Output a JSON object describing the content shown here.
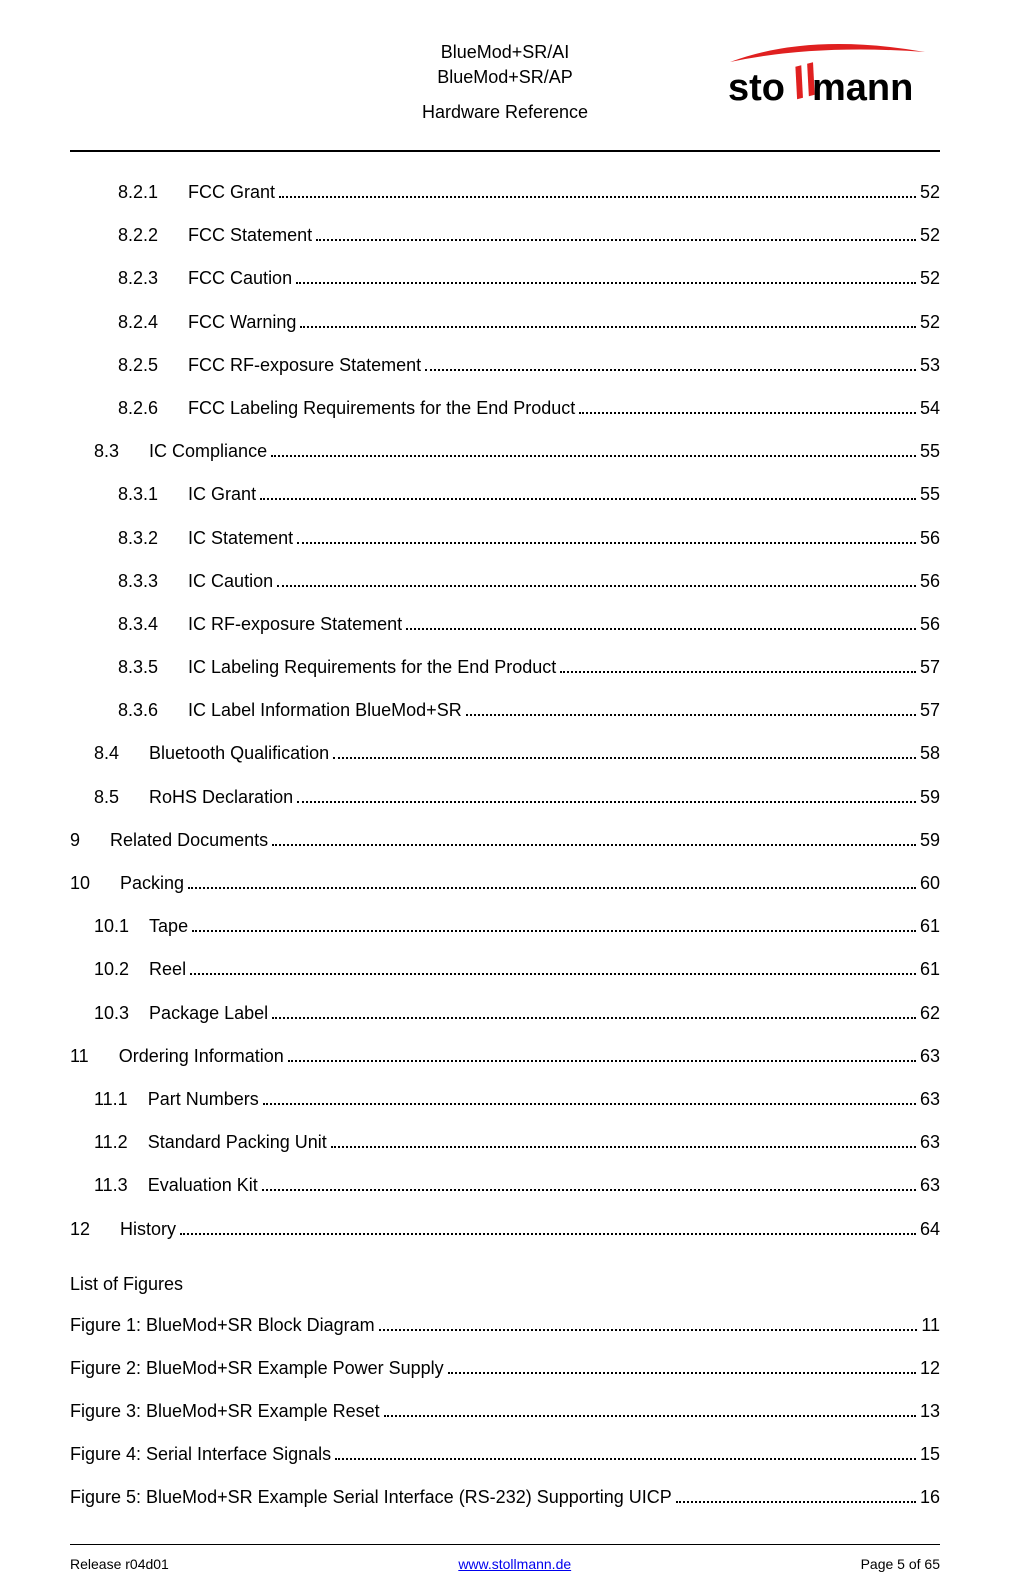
{
  "header": {
    "line1": "BlueMod+SR/AI",
    "line2": "BlueMod+SR/AP",
    "line3": "Hardware Reference"
  },
  "logo": {
    "text_pre": "sto",
    "text_mid": "ll",
    "text_post": "mann",
    "main_color": "#000000",
    "accent_color": "#e02020",
    "swoosh_color": "#e02020",
    "l_tilt_deg": -14,
    "font_size_pt": 34
  },
  "toc_entries": [
    {
      "indent": 3,
      "num": "8.2.1",
      "gap": "      ",
      "title": "FCC Grant",
      "page": "52"
    },
    {
      "indent": 3,
      "num": "8.2.2",
      "gap": "      ",
      "title": "FCC Statement",
      "page": "52"
    },
    {
      "indent": 3,
      "num": "8.2.3",
      "gap": "      ",
      "title": "FCC Caution",
      "page": "52"
    },
    {
      "indent": 3,
      "num": "8.2.4",
      "gap": "      ",
      "title": "FCC Warning",
      "page": "52"
    },
    {
      "indent": 3,
      "num": "8.2.5",
      "gap": "      ",
      "title": "FCC RF-exposure Statement",
      "page": "53"
    },
    {
      "indent": 3,
      "num": "8.2.6",
      "gap": "      ",
      "title": "FCC Labeling Requirements for the End Product",
      "page": "54"
    },
    {
      "indent": 2,
      "num": "8.3",
      "gap": "      ",
      "title": "IC Compliance",
      "page": "55"
    },
    {
      "indent": 3,
      "num": "8.3.1",
      "gap": "      ",
      "title": "IC Grant",
      "page": "55"
    },
    {
      "indent": 3,
      "num": "8.3.2",
      "gap": "      ",
      "title": "IC Statement",
      "page": "56"
    },
    {
      "indent": 3,
      "num": "8.3.3",
      "gap": "      ",
      "title": "IC Caution",
      "page": "56"
    },
    {
      "indent": 3,
      "num": "8.3.4",
      "gap": "      ",
      "title": "IC RF-exposure Statement",
      "page": "56"
    },
    {
      "indent": 3,
      "num": "8.3.5",
      "gap": "      ",
      "title": "IC Labeling Requirements for the End Product",
      "page": "57"
    },
    {
      "indent": 3,
      "num": "8.3.6",
      "gap": "      ",
      "title": "IC Label Information BlueMod+SR",
      "page": "57"
    },
    {
      "indent": 2,
      "num": "8.4",
      "gap": "      ",
      "title": "Bluetooth Qualification",
      "page": "58"
    },
    {
      "indent": 2,
      "num": "8.5",
      "gap": "      ",
      "title": "RoHS Declaration",
      "page": "59"
    },
    {
      "indent": 1,
      "num": "9",
      "gap": "      ",
      "title": "Related Documents",
      "page": "59"
    },
    {
      "indent": 1,
      "num": "10",
      "gap": "      ",
      "title": "Packing",
      "page": "60"
    },
    {
      "indent": 2,
      "num": "10.1",
      "gap": "    ",
      "title": "Tape",
      "page": "61"
    },
    {
      "indent": 2,
      "num": "10.2",
      "gap": "    ",
      "title": "Reel",
      "page": "61"
    },
    {
      "indent": 2,
      "num": "10.3",
      "gap": "    ",
      "title": "Package Label",
      "page": "62"
    },
    {
      "indent": 1,
      "num": "11",
      "gap": "      ",
      "title": "Ordering Information",
      "page": "63"
    },
    {
      "indent": 2,
      "num": "11.1",
      "gap": "    ",
      "title": "Part Numbers",
      "page": "63"
    },
    {
      "indent": 2,
      "num": "11.2",
      "gap": "    ",
      "title": "Standard Packing Unit",
      "page": "63"
    },
    {
      "indent": 2,
      "num": "11.3",
      "gap": "    ",
      "title": "Evaluation Kit",
      "page": "63"
    },
    {
      "indent": 1,
      "num": "12",
      "gap": "      ",
      "title": "History",
      "page": "64"
    }
  ],
  "lof_heading": "List of Figures",
  "lof_entries": [
    {
      "title": "Figure 1: BlueMod+SR Block Diagram",
      "page": "11"
    },
    {
      "title": "Figure 2: BlueMod+SR Example Power Supply",
      "page": "12"
    },
    {
      "title": "Figure 3: BlueMod+SR Example Reset",
      "page": "13"
    },
    {
      "title": "Figure 4: Serial Interface Signals",
      "page": "15"
    },
    {
      "title": "Figure 5: BlueMod+SR Example Serial Interface (RS-232) Supporting UICP",
      "page": "16"
    }
  ],
  "footer": {
    "left": "Release r04d01",
    "center": "www.stollmann.de",
    "right": "Page 5 of 65"
  }
}
